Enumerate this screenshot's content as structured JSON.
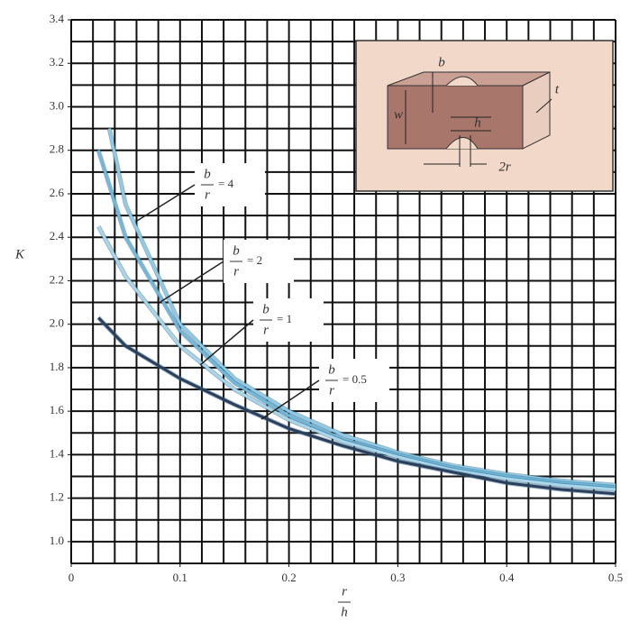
{
  "chart_data": {
    "type": "line",
    "y_label": "K",
    "x_label": {
      "numerator": "r",
      "denominator": "h"
    },
    "xlim": [
      0,
      0.5
    ],
    "ylim": [
      0.9,
      3.4
    ],
    "xticks": [
      0,
      0.1,
      0.2,
      0.3,
      0.4,
      0.5
    ],
    "yticks": [
      {
        "value": 1,
        "label": "1.0"
      },
      1.2,
      1.4,
      1.6,
      1.8,
      {
        "value": 2,
        "label": "2.0"
      },
      2.2,
      2.4,
      2.6,
      2.8,
      {
        "value": 3,
        "label": "3.0"
      },
      3.2,
      3.4
    ],
    "grid": true,
    "xgrid": [
      0,
      0.02,
      0.04,
      0.06,
      0.08,
      0.1,
      0.12,
      0.14,
      0.16,
      0.18,
      0.2,
      0.22,
      0.24,
      0.26,
      0.28,
      0.3,
      0.32,
      0.34,
      0.36,
      0.38,
      0.4,
      0.42,
      0.44,
      0.46,
      0.48,
      0.5
    ],
    "ygrid": [
      0.9,
      1.0,
      1.1,
      1.2,
      1.3,
      1.4,
      1.5,
      1.6,
      1.7,
      1.8,
      1.9,
      2.0,
      2.1,
      2.2,
      2.3,
      2.4,
      2.5,
      2.6,
      2.7,
      2.8,
      2.9,
      3.0,
      3.1,
      3.2,
      3.3,
      3.4
    ],
    "series": [
      {
        "name": {
          "numerator": "b",
          "denominator": "r",
          "text": "= 4"
        },
        "color": "#8fcbe6",
        "x": [
          0.035,
          0.05,
          0.1,
          0.15,
          0.2,
          0.25,
          0.3,
          0.35,
          0.4,
          0.45,
          0.5
        ],
        "values": [
          2.9,
          2.55,
          2.0,
          1.75,
          1.6,
          1.49,
          1.41,
          1.35,
          1.31,
          1.28,
          1.26
        ]
      },
      {
        "name": {
          "numerator": "b",
          "denominator": "r",
          "text": "= 2"
        },
        "color": "#6fb8dc",
        "x": [
          0.025,
          0.05,
          0.1,
          0.15,
          0.2,
          0.25,
          0.3,
          0.35,
          0.4,
          0.45,
          0.5
        ],
        "values": [
          2.8,
          2.4,
          1.97,
          1.73,
          1.58,
          1.47,
          1.4,
          1.34,
          1.3,
          1.27,
          1.25
        ]
      },
      {
        "name": {
          "numerator": "b",
          "denominator": "r",
          "text": "= 1"
        },
        "color": "#a9d6ea",
        "x": [
          0.025,
          0.05,
          0.1,
          0.15,
          0.2,
          0.25,
          0.3,
          0.35,
          0.4,
          0.45,
          0.5
        ],
        "values": [
          2.45,
          2.22,
          1.9,
          1.7,
          1.56,
          1.46,
          1.39,
          1.33,
          1.29,
          1.26,
          1.24
        ]
      },
      {
        "name": {
          "numerator": "b",
          "denominator": "r",
          "text": "= 0.5"
        },
        "color": "#2b3f5c",
        "x": [
          0.025,
          0.05,
          0.1,
          0.15,
          0.2,
          0.25,
          0.3,
          0.35,
          0.4,
          0.45,
          0.5
        ],
        "values": [
          2.03,
          1.9,
          1.75,
          1.63,
          1.52,
          1.44,
          1.37,
          1.32,
          1.27,
          1.24,
          1.22
        ]
      }
    ],
    "inset": {
      "labels": [
        "b",
        "t",
        "w",
        "h",
        "2r"
      ]
    }
  }
}
